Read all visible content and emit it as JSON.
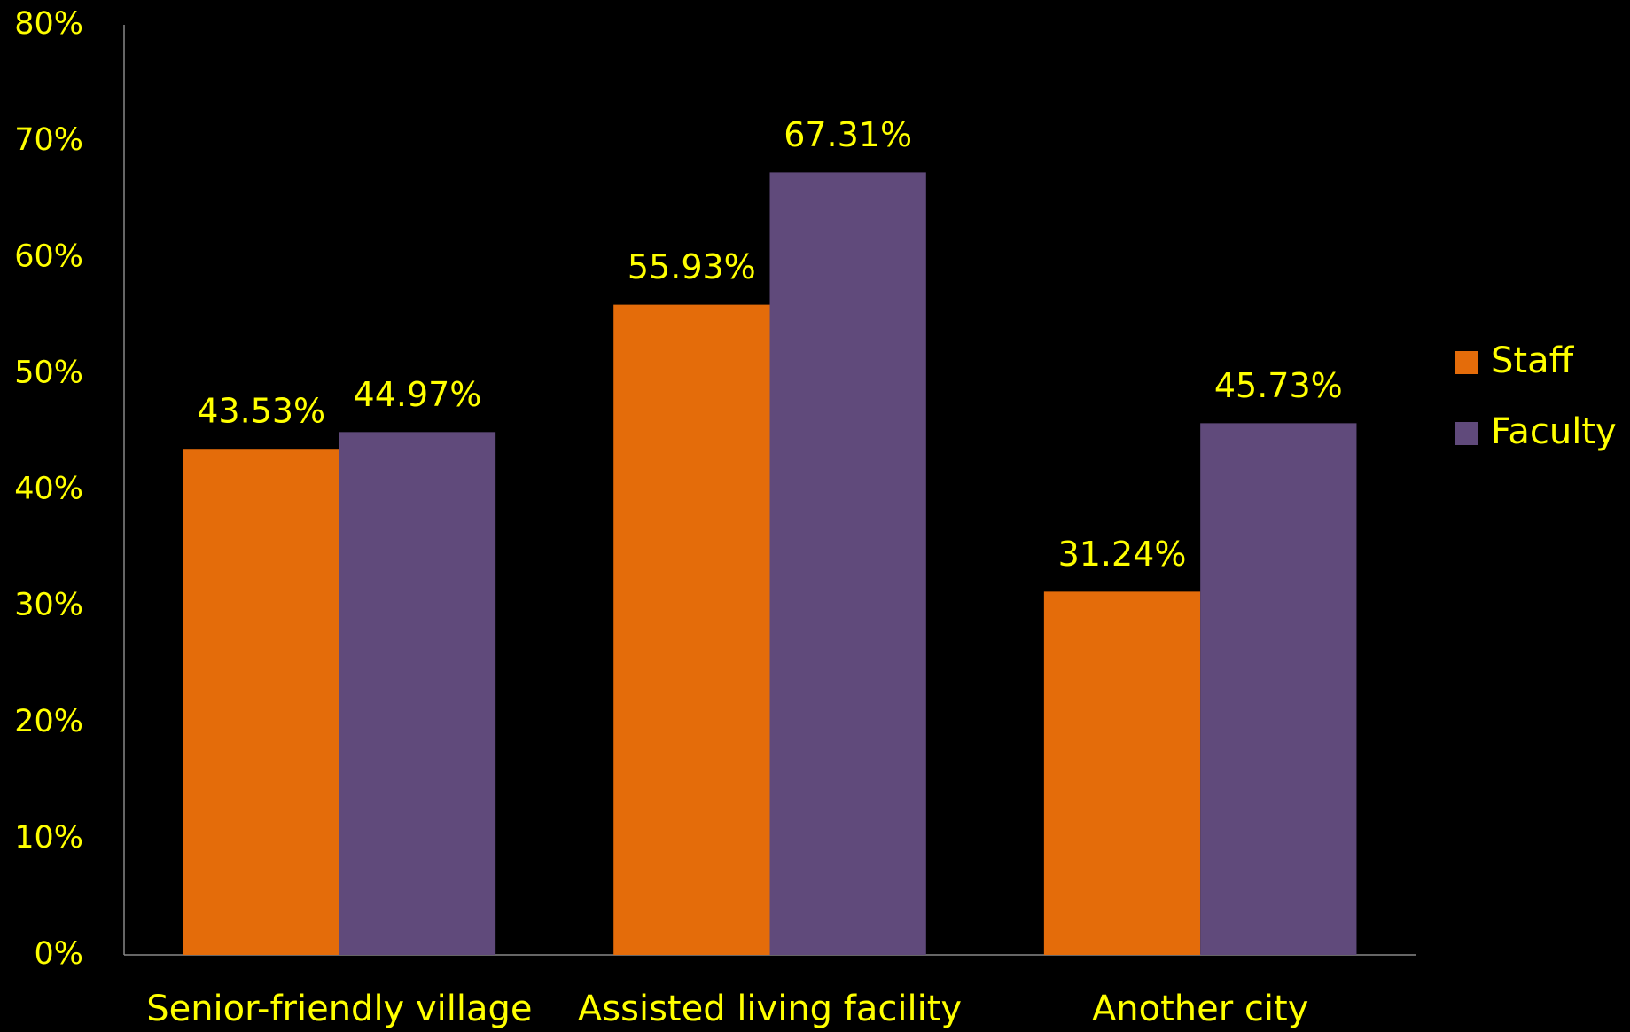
{
  "chart_data": {
    "type": "bar",
    "categories": [
      "Senior-friendly village",
      "Assisted living facility",
      "Another city"
    ],
    "series": [
      {
        "name": "Staff",
        "color": "#e46c0a",
        "values": [
          43.53,
          55.93,
          31.24
        ],
        "value_labels": [
          "43.53%",
          "55.93%",
          "31.24%"
        ]
      },
      {
        "name": "Faculty",
        "color": "#604a7b",
        "values": [
          44.97,
          67.31,
          45.73
        ],
        "value_labels": [
          "44.97%",
          "67.31%",
          "45.73%"
        ]
      }
    ],
    "ylim": [
      0,
      80
    ],
    "yticks": [
      {
        "value": 0,
        "label": "0%"
      },
      {
        "value": 10,
        "label": "10%"
      },
      {
        "value": 20,
        "label": "20%"
      },
      {
        "value": 30,
        "label": "30%"
      },
      {
        "value": 40,
        "label": "40%"
      },
      {
        "value": 50,
        "label": "50%"
      },
      {
        "value": 60,
        "label": "60%"
      },
      {
        "value": 70,
        "label": "70%"
      },
      {
        "value": 80,
        "label": "80%"
      }
    ],
    "grid": false,
    "legend": "right"
  }
}
